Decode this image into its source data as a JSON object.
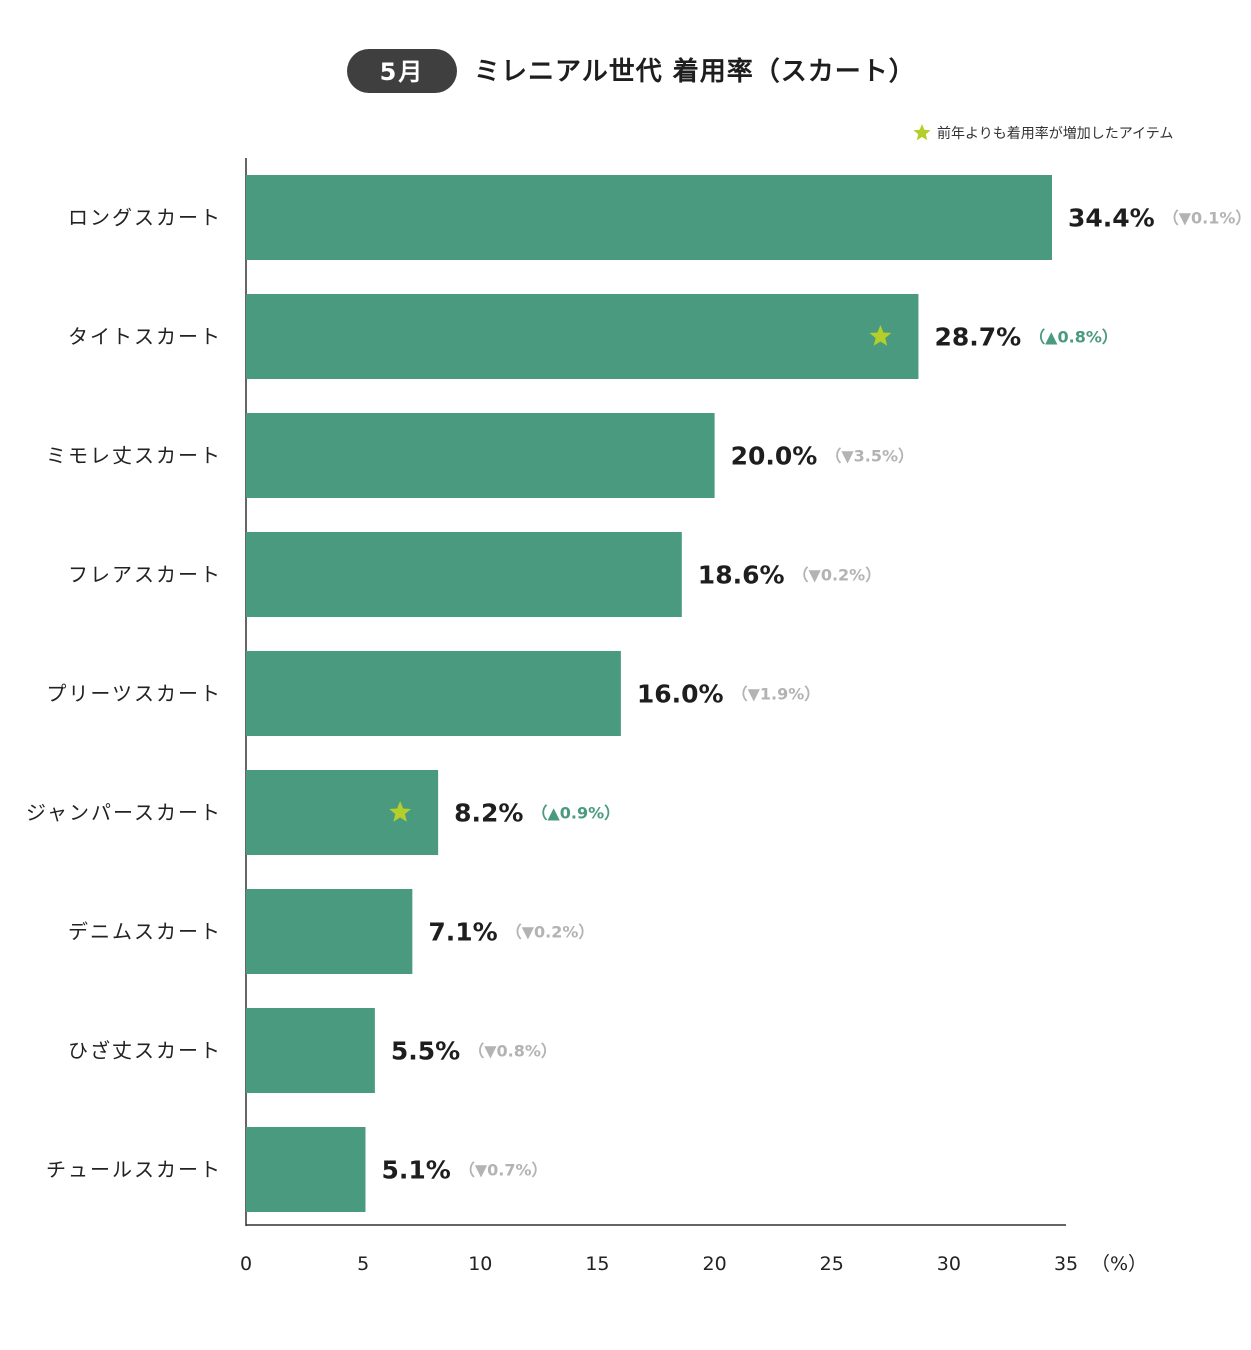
{
  "header": {
    "month_badge": "5月",
    "title": "ミレニアル世代 着用率（スカート）"
  },
  "legend": {
    "star_label": "前年よりも着用率が増加したアイテム"
  },
  "colors": {
    "bar": "#4a9a80",
    "star": "#b5cf2a",
    "badge": "#3f3f3f",
    "up": "#4a9a80",
    "down": "#b3b3b3"
  },
  "chart_data": {
    "type": "bar",
    "orientation": "horizontal",
    "title": "ミレニアル世代 着用率（スカート）",
    "xlabel": "（%）",
    "ylabel": "",
    "xlim": [
      0,
      35
    ],
    "xticks": [
      "0",
      "5",
      "10",
      "15",
      "20",
      "25",
      "30",
      "35"
    ],
    "x_unit_label": "（%）",
    "categories": [
      "ロングスカート",
      "タイトスカート",
      "ミモレ丈スカート",
      "フレアスカート",
      "プリーツスカート",
      "ジャンパースカート",
      "デニムスカート",
      "ひざ丈スカート",
      "チュールスカート"
    ],
    "values": [
      34.4,
      28.7,
      20.0,
      18.6,
      16.0,
      8.2,
      7.1,
      5.5,
      5.1
    ],
    "value_labels": [
      "34.4%",
      "28.7%",
      "20.0%",
      "18.6%",
      "16.0%",
      "8.2%",
      "7.1%",
      "5.5%",
      "5.1%"
    ],
    "change_labels": [
      "（▼0.1%）",
      "（▲0.8%）",
      "（▼3.5%）",
      "（▼0.2%）",
      "（▼1.9%）",
      "（▲0.9%）",
      "（▼0.2%）",
      "（▼0.8%）",
      "（▼0.7%）"
    ],
    "change_direction": [
      "down",
      "up",
      "down",
      "down",
      "down",
      "up",
      "down",
      "down",
      "down"
    ],
    "starred": [
      false,
      true,
      false,
      false,
      false,
      true,
      false,
      false,
      false
    ],
    "grid": false
  }
}
